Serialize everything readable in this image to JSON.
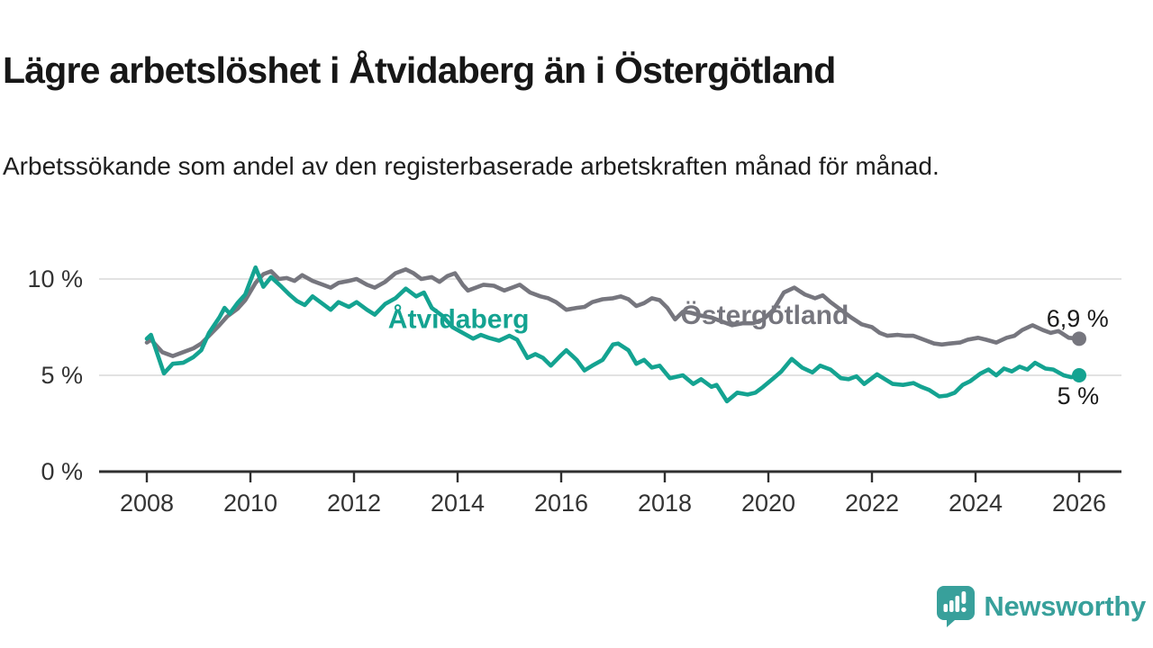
{
  "header": {
    "title": "Lägre arbetslöshet i Åtvidaberg än i Östergötland",
    "subtitle": "Arbetssökande som andel av den registerbaserade arbetskraften månad för månad."
  },
  "branding": {
    "logo_text": "Newsworthy",
    "logo_color": "#38a09b",
    "logo_icon": "speech-bubble-bar-chart-icon"
  },
  "colors": {
    "atvidaberg": "#14a391",
    "ostergotland": "#76767e",
    "axis": "#2f2f2f",
    "grid": "#d9d9d9",
    "tick_text": "#333333",
    "value_text": "#1a1a1a"
  },
  "chart_data": {
    "type": "line",
    "title": "Lägre arbetslöshet i Åtvidaberg än i Östergötland",
    "subtitle": "Arbetssökande som andel av den registerbaserade arbetskraften månad för månad.",
    "grid": "horizontal-only",
    "legend_position": "inline-labels-on-lines",
    "x_axis": {
      "ticks": [
        2008,
        2010,
        2012,
        2014,
        2016,
        2018,
        2020,
        2022,
        2024,
        2026
      ],
      "range_years": [
        2008.0,
        2026.0
      ]
    },
    "y_axis": {
      "ticks": [
        0,
        5,
        10
      ],
      "tick_labels": [
        "0 %",
        "5 %",
        "10 %"
      ],
      "gridlines": [
        5,
        10
      ],
      "range": [
        0,
        12
      ],
      "unit": "percent"
    },
    "series": [
      {
        "name": "Östergötland",
        "color": "#76767e",
        "end_value_label": "6,9 %",
        "end_value": 6.9,
        "name_label_anchor": {
          "x": 2019.93,
          "y": 7.66
        },
        "end_label_anchor": {
          "x": 2025.97,
          "y": 7.52
        },
        "points": [
          [
            2008.0,
            6.7
          ],
          [
            2008.08,
            6.85
          ],
          [
            2008.3,
            6.2
          ],
          [
            2008.5,
            6.0
          ],
          [
            2008.7,
            6.2
          ],
          [
            2008.9,
            6.4
          ],
          [
            2009.05,
            6.65
          ],
          [
            2009.2,
            7.05
          ],
          [
            2009.4,
            7.6
          ],
          [
            2009.55,
            8.05
          ],
          [
            2009.75,
            8.45
          ],
          [
            2009.9,
            8.9
          ],
          [
            2010.1,
            9.8
          ],
          [
            2010.25,
            10.25
          ],
          [
            2010.4,
            10.4
          ],
          [
            2010.55,
            10.0
          ],
          [
            2010.7,
            10.05
          ],
          [
            2010.85,
            9.9
          ],
          [
            2011.0,
            10.2
          ],
          [
            2011.2,
            9.9
          ],
          [
            2011.4,
            9.7
          ],
          [
            2011.55,
            9.55
          ],
          [
            2011.7,
            9.8
          ],
          [
            2011.9,
            9.9
          ],
          [
            2012.05,
            10.0
          ],
          [
            2012.25,
            9.7
          ],
          [
            2012.4,
            9.55
          ],
          [
            2012.6,
            9.85
          ],
          [
            2012.8,
            10.3
          ],
          [
            2013.0,
            10.5
          ],
          [
            2013.15,
            10.3
          ],
          [
            2013.3,
            10.0
          ],
          [
            2013.5,
            10.1
          ],
          [
            2013.65,
            9.85
          ],
          [
            2013.8,
            10.15
          ],
          [
            2013.95,
            10.3
          ],
          [
            2014.1,
            9.7
          ],
          [
            2014.2,
            9.4
          ],
          [
            2014.35,
            9.55
          ],
          [
            2014.5,
            9.7
          ],
          [
            2014.7,
            9.65
          ],
          [
            2014.9,
            9.4
          ],
          [
            2015.05,
            9.55
          ],
          [
            2015.2,
            9.7
          ],
          [
            2015.4,
            9.3
          ],
          [
            2015.6,
            9.1
          ],
          [
            2015.75,
            9.0
          ],
          [
            2015.9,
            8.8
          ],
          [
            2016.1,
            8.4
          ],
          [
            2016.3,
            8.5
          ],
          [
            2016.45,
            8.55
          ],
          [
            2016.6,
            8.8
          ],
          [
            2016.8,
            8.95
          ],
          [
            2017.0,
            9.0
          ],
          [
            2017.15,
            9.1
          ],
          [
            2017.3,
            8.95
          ],
          [
            2017.45,
            8.6
          ],
          [
            2017.6,
            8.75
          ],
          [
            2017.75,
            9.0
          ],
          [
            2017.9,
            8.9
          ],
          [
            2018.05,
            8.5
          ],
          [
            2018.2,
            7.9
          ],
          [
            2018.35,
            8.3
          ],
          [
            2018.5,
            8.25
          ],
          [
            2018.7,
            8.1
          ],
          [
            2018.9,
            8.0
          ],
          [
            2019.1,
            7.8
          ],
          [
            2019.3,
            7.6
          ],
          [
            2019.5,
            7.7
          ],
          [
            2019.7,
            7.7
          ],
          [
            2019.9,
            7.9
          ],
          [
            2020.1,
            8.4
          ],
          [
            2020.3,
            9.3
          ],
          [
            2020.5,
            9.55
          ],
          [
            2020.7,
            9.2
          ],
          [
            2020.9,
            9.0
          ],
          [
            2021.05,
            9.15
          ],
          [
            2021.2,
            8.8
          ],
          [
            2021.4,
            8.4
          ],
          [
            2021.6,
            8.0
          ],
          [
            2021.8,
            7.65
          ],
          [
            2022.0,
            7.5
          ],
          [
            2022.15,
            7.2
          ],
          [
            2022.3,
            7.05
          ],
          [
            2022.5,
            7.1
          ],
          [
            2022.65,
            7.05
          ],
          [
            2022.8,
            7.05
          ],
          [
            2023.0,
            6.85
          ],
          [
            2023.2,
            6.65
          ],
          [
            2023.35,
            6.6
          ],
          [
            2023.5,
            6.65
          ],
          [
            2023.7,
            6.7
          ],
          [
            2023.85,
            6.85
          ],
          [
            2024.05,
            6.95
          ],
          [
            2024.2,
            6.85
          ],
          [
            2024.4,
            6.7
          ],
          [
            2024.6,
            6.95
          ],
          [
            2024.75,
            7.05
          ],
          [
            2024.9,
            7.35
          ],
          [
            2025.1,
            7.6
          ],
          [
            2025.3,
            7.35
          ],
          [
            2025.45,
            7.2
          ],
          [
            2025.6,
            7.3
          ],
          [
            2025.8,
            6.95
          ],
          [
            2026.0,
            6.9
          ]
        ]
      },
      {
        "name": "Åtvidaberg",
        "color": "#14a391",
        "end_value_label": "5 %",
        "end_value": 5.0,
        "name_label_anchor": {
          "x": 2014.02,
          "y": 7.45
        },
        "end_label_anchor": {
          "x": 2025.98,
          "y": 3.5
        },
        "points": [
          [
            2008.0,
            6.9
          ],
          [
            2008.08,
            7.1
          ],
          [
            2008.33,
            5.1
          ],
          [
            2008.5,
            5.6
          ],
          [
            2008.7,
            5.65
          ],
          [
            2008.9,
            5.95
          ],
          [
            2009.05,
            6.3
          ],
          [
            2009.2,
            7.2
          ],
          [
            2009.4,
            8.0
          ],
          [
            2009.5,
            8.5
          ],
          [
            2009.6,
            8.2
          ],
          [
            2009.75,
            8.75
          ],
          [
            2009.9,
            9.2
          ],
          [
            2010.1,
            10.6
          ],
          [
            2010.25,
            9.6
          ],
          [
            2010.4,
            10.1
          ],
          [
            2010.6,
            9.6
          ],
          [
            2010.75,
            9.2
          ],
          [
            2010.9,
            8.85
          ],
          [
            2011.05,
            8.65
          ],
          [
            2011.2,
            9.1
          ],
          [
            2011.4,
            8.7
          ],
          [
            2011.55,
            8.4
          ],
          [
            2011.7,
            8.8
          ],
          [
            2011.9,
            8.55
          ],
          [
            2012.05,
            8.8
          ],
          [
            2012.25,
            8.4
          ],
          [
            2012.4,
            8.15
          ],
          [
            2012.6,
            8.7
          ],
          [
            2012.8,
            9.0
          ],
          [
            2013.0,
            9.5
          ],
          [
            2013.2,
            9.1
          ],
          [
            2013.35,
            9.3
          ],
          [
            2013.5,
            8.5
          ],
          [
            2013.7,
            8.1
          ],
          [
            2013.9,
            7.5
          ],
          [
            2014.1,
            7.2
          ],
          [
            2014.3,
            6.9
          ],
          [
            2014.45,
            7.1
          ],
          [
            2014.6,
            6.95
          ],
          [
            2014.8,
            6.8
          ],
          [
            2015.0,
            7.05
          ],
          [
            2015.15,
            6.85
          ],
          [
            2015.35,
            5.9
          ],
          [
            2015.5,
            6.1
          ],
          [
            2015.65,
            5.9
          ],
          [
            2015.8,
            5.5
          ],
          [
            2016.0,
            6.05
          ],
          [
            2016.1,
            6.3
          ],
          [
            2016.3,
            5.8
          ],
          [
            2016.45,
            5.25
          ],
          [
            2016.6,
            5.5
          ],
          [
            2016.8,
            5.8
          ],
          [
            2017.0,
            6.6
          ],
          [
            2017.1,
            6.65
          ],
          [
            2017.3,
            6.3
          ],
          [
            2017.45,
            5.6
          ],
          [
            2017.6,
            5.8
          ],
          [
            2017.75,
            5.4
          ],
          [
            2017.9,
            5.5
          ],
          [
            2018.1,
            4.85
          ],
          [
            2018.35,
            5.0
          ],
          [
            2018.55,
            4.55
          ],
          [
            2018.7,
            4.8
          ],
          [
            2018.9,
            4.4
          ],
          [
            2019.0,
            4.5
          ],
          [
            2019.2,
            3.65
          ],
          [
            2019.4,
            4.1
          ],
          [
            2019.6,
            4.0
          ],
          [
            2019.75,
            4.1
          ],
          [
            2019.9,
            4.4
          ],
          [
            2020.1,
            4.85
          ],
          [
            2020.25,
            5.2
          ],
          [
            2020.45,
            5.85
          ],
          [
            2020.65,
            5.4
          ],
          [
            2020.85,
            5.15
          ],
          [
            2021.0,
            5.5
          ],
          [
            2021.2,
            5.3
          ],
          [
            2021.4,
            4.85
          ],
          [
            2021.55,
            4.8
          ],
          [
            2021.7,
            4.95
          ],
          [
            2021.85,
            4.55
          ],
          [
            2022.1,
            5.05
          ],
          [
            2022.25,
            4.8
          ],
          [
            2022.4,
            4.55
          ],
          [
            2022.6,
            4.5
          ],
          [
            2022.8,
            4.6
          ],
          [
            2022.95,
            4.4
          ],
          [
            2023.1,
            4.25
          ],
          [
            2023.3,
            3.9
          ],
          [
            2023.45,
            3.95
          ],
          [
            2023.6,
            4.1
          ],
          [
            2023.75,
            4.5
          ],
          [
            2023.9,
            4.7
          ],
          [
            2024.1,
            5.1
          ],
          [
            2024.25,
            5.3
          ],
          [
            2024.4,
            5.0
          ],
          [
            2024.55,
            5.35
          ],
          [
            2024.7,
            5.2
          ],
          [
            2024.85,
            5.45
          ],
          [
            2025.0,
            5.3
          ],
          [
            2025.15,
            5.65
          ],
          [
            2025.35,
            5.35
          ],
          [
            2025.5,
            5.3
          ],
          [
            2025.7,
            5.0
          ],
          [
            2025.85,
            4.9
          ],
          [
            2026.0,
            5.0
          ]
        ]
      }
    ]
  }
}
